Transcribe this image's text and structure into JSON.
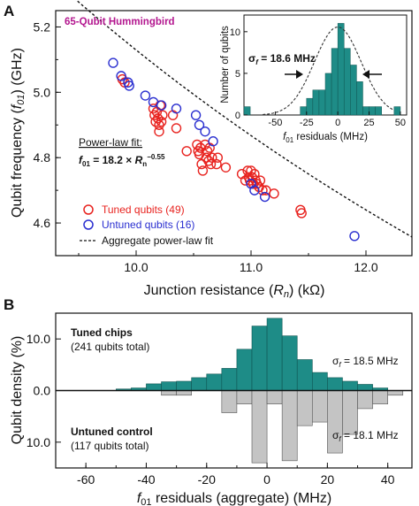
{
  "colors": {
    "tuned": "#e8231f",
    "untuned": "#2a2fd0",
    "teal": "#1e8c87",
    "gray": "#c4c4c4",
    "chip_label": "#b3168f"
  },
  "panel_a": {
    "letter": "A",
    "chip_label": "65-Qubit Hummingbird",
    "xlabel": "Junction resistance (R_n) (kΩ)",
    "ylabel": "Qubit frequency (f_01) (GHz)",
    "fit_title": "Power-law fit:",
    "fit_formula": "f01 = 18.2 × Rn^−0.55",
    "legend": [
      "Tuned qubits (49)",
      "Untuned qubits (16)",
      "Aggregate power-law fit"
    ]
  },
  "inset": {
    "xlabel": "f01 residuals (MHz)",
    "ylabel": "Number of qubits",
    "sigma_label": "σf = 18.6 MHz"
  },
  "panel_b": {
    "letter": "B",
    "xlabel": "f01 residuals (aggregate) (MHz)",
    "ylabel": "Qubit density (%)",
    "top_title": "Tuned chips",
    "top_sub": "(241 qubits total)",
    "top_sigma": "σf = 18.5 MHz",
    "bottom_title": "Untuned control",
    "bottom_sub": "(117 qubits total)",
    "bottom_sigma": "σf = 18.1 MHz"
  },
  "chart_data": [
    {
      "type": "scatter",
      "title": "65-Qubit Hummingbird",
      "xlabel": "Junction resistance (Rn) (kΩ)",
      "ylabel": "Qubit frequency (f01) (GHz)",
      "xlim": [
        9.3,
        12.4
      ],
      "ylim": [
        4.5,
        5.25
      ],
      "xticks": [
        10.0,
        11.0,
        12.0
      ],
      "yticks": [
        4.6,
        4.8,
        5.0,
        5.2
      ],
      "xtick_labels": [
        "10.0",
        "11.0",
        "12.0"
      ],
      "ytick_labels": [
        "4.6",
        "4.8",
        "5.0",
        "5.2"
      ],
      "fit": {
        "name": "Aggregate power-law fit",
        "a": 18.2,
        "b": -0.55,
        "x_range": [
          9.3,
          12.4
        ]
      },
      "series": [
        {
          "name": "Tuned qubits (49)",
          "points": [
            [
              9.88,
              5.04
            ],
            [
              9.9,
              5.03
            ],
            [
              10.15,
              4.95
            ],
            [
              10.16,
              4.93
            ],
            [
              10.17,
              4.91
            ],
            [
              10.18,
              4.94
            ],
            [
              10.19,
              4.92
            ],
            [
              10.2,
              4.9
            ],
            [
              10.21,
              4.96
            ],
            [
              10.2,
              4.88
            ],
            [
              10.23,
              4.93
            ],
            [
              10.22,
              4.91
            ],
            [
              10.32,
              4.93
            ],
            [
              10.35,
              4.89
            ],
            [
              10.44,
              4.82
            ],
            [
              10.53,
              4.84
            ],
            [
              10.54,
              4.82
            ],
            [
              10.55,
              4.81
            ],
            [
              10.56,
              4.83
            ],
            [
              10.57,
              4.78
            ],
            [
              10.58,
              4.76
            ],
            [
              10.6,
              4.84
            ],
            [
              10.61,
              4.8
            ],
            [
              10.62,
              4.82
            ],
            [
              10.63,
              4.79
            ],
            [
              10.64,
              4.83
            ],
            [
              10.66,
              4.8
            ],
            [
              10.7,
              4.78
            ],
            [
              10.78,
              4.77
            ],
            [
              10.92,
              4.75
            ],
            [
              10.95,
              4.73
            ],
            [
              10.97,
              4.76
            ],
            [
              10.98,
              4.74
            ],
            [
              10.99,
              4.73
            ],
            [
              11.0,
              4.76
            ],
            [
              11.01,
              4.74
            ],
            [
              11.02,
              4.72
            ],
            [
              11.03,
              4.75
            ],
            [
              11.04,
              4.73
            ],
            [
              11.05,
              4.72
            ],
            [
              11.07,
              4.71
            ],
            [
              11.08,
              4.73
            ],
            [
              11.1,
              4.7
            ],
            [
              11.13,
              4.7
            ],
            [
              11.2,
              4.69
            ],
            [
              11.43,
              4.64
            ],
            [
              11.44,
              4.63
            ],
            [
              10.65,
              4.78
            ],
            [
              10.71,
              4.8
            ]
          ]
        },
        {
          "name": "Untuned qubits (16)",
          "points": [
            [
              9.8,
              5.09
            ],
            [
              9.87,
              5.05
            ],
            [
              9.93,
              5.03
            ],
            [
              9.94,
              5.02
            ],
            [
              10.08,
              4.99
            ],
            [
              10.15,
              4.97
            ],
            [
              10.22,
              4.96
            ],
            [
              10.52,
              4.93
            ],
            [
              10.55,
              4.9
            ],
            [
              10.67,
              4.85
            ],
            [
              11.0,
              4.72
            ],
            [
              11.03,
              4.7
            ],
            [
              11.12,
              4.68
            ],
            [
              11.9,
              4.56
            ],
            [
              10.6,
              4.88
            ],
            [
              10.35,
              4.95
            ]
          ]
        }
      ],
      "legend_position": "bottom-left"
    },
    {
      "type": "bar",
      "title": "",
      "xlabel": "f01 residuals (MHz)",
      "ylabel": "Number of qubits",
      "xlim": [
        -75,
        55
      ],
      "ylim": [
        0,
        12
      ],
      "xticks": [
        -50,
        -25,
        0,
        25,
        50
      ],
      "yticks": [
        0,
        5,
        10
      ],
      "bin_width": 5,
      "bin_starts": [
        -75,
        -70,
        -65,
        -60,
        -55,
        -50,
        -45,
        -40,
        -35,
        -30,
        -25,
        -20,
        -15,
        -10,
        -5,
        0,
        5,
        10,
        15,
        20,
        25,
        30,
        35,
        40,
        45,
        50
      ],
      "values": [
        1,
        0,
        0,
        0,
        0,
        0,
        0,
        0,
        0,
        1,
        2,
        3,
        3,
        5,
        8,
        11,
        8,
        6,
        4,
        1,
        1,
        1,
        0,
        0,
        1,
        0
      ],
      "gaussian_sigma": 18.6,
      "sigma_label": "σf = 18.6 MHz"
    },
    {
      "type": "bar",
      "xlabel": "f01 residuals (aggregate) (MHz)",
      "ylabel": "Qubit density (%)",
      "xlim": [
        -70,
        48
      ],
      "ylim": [
        -15,
        15
      ],
      "xticks": [
        -60,
        -40,
        -20,
        0,
        20,
        40
      ],
      "yticks": [
        10.0,
        0.0,
        10.0
      ],
      "ytick_labels": [
        "10.0",
        "0.0",
        "10.0"
      ],
      "bin_width": 5,
      "bin_starts": [
        -50,
        -45,
        -40,
        -35,
        -30,
        -25,
        -20,
        -15,
        -10,
        -5,
        0,
        5,
        10,
        15,
        20,
        25,
        30,
        35,
        40
      ],
      "series": [
        {
          "name": "Tuned chips (241 qubits total)",
          "values": [
            0.3,
            0.5,
            1.3,
            1.7,
            1.8,
            2.5,
            3.2,
            4.3,
            8.0,
            12.5,
            14.0,
            10.6,
            6.0,
            3.5,
            2.5,
            1.8,
            1.2,
            0.5,
            0.0
          ]
        },
        {
          "name": "Untuned control (117 qubits total)",
          "values": [
            0,
            0,
            0,
            0.9,
            0.9,
            0,
            0,
            4.3,
            2.6,
            14.0,
            2.6,
            13.6,
            6.8,
            6.1,
            12.1,
            8.5,
            3.5,
            2.6,
            0.9
          ]
        }
      ],
      "sigma_top": 18.5,
      "sigma_bottom": 18.1
    }
  ]
}
